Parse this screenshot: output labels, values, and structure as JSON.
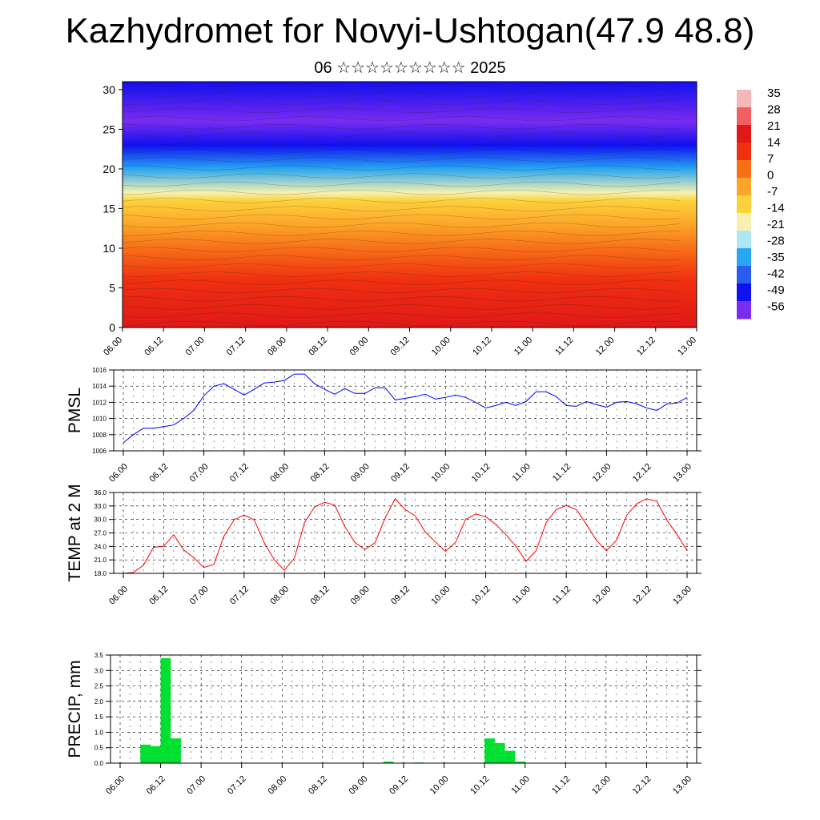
{
  "page": {
    "title": "Kazhydromet for Novyi-Ushtogan(47.9 48.8)",
    "subtitle": "06 ☆☆☆☆☆☆☆☆☆ 2025"
  },
  "chart_data": [
    {
      "type": "heatmap",
      "title": "",
      "xlabel": "",
      "ylabel": "",
      "x_ticks": [
        "06.00",
        "06.12",
        "07.00",
        "07.12",
        "08.00",
        "08.12",
        "09.00",
        "09.12",
        "10.00",
        "10.12",
        "11.00",
        "11.12",
        "12.00",
        "12.12",
        "13.00"
      ],
      "y_ticks": [
        0,
        5,
        10,
        15,
        20,
        25,
        30
      ],
      "ylim": [
        0,
        31
      ],
      "colorbar_labels": [
        "35",
        "28",
        "21",
        "14",
        "7",
        "0",
        "-7",
        "-14",
        "-21",
        "-28",
        "-35",
        "-42",
        "-49",
        "-56"
      ],
      "colorbar_values": [
        35,
        28,
        21,
        14,
        7,
        0,
        -7,
        -14,
        -21,
        -28,
        -35,
        -42,
        -49,
        -56
      ],
      "colors": [
        "#7a2cf0",
        "#1010f0",
        "#2a5cf0",
        "#29a6f0",
        "#aee6f6",
        "#f8f0b0",
        "#fcd23a",
        "#fba628",
        "#f77018",
        "#f03010",
        "#e01818",
        "#f06060",
        "#f4b8b8"
      ],
      "profile": [
        {
          "height": 0,
          "temp": 22
        },
        {
          "height": 6,
          "temp": 15
        },
        {
          "height": 10,
          "temp": 6
        },
        {
          "height": 13,
          "temp": -3
        },
        {
          "height": 16,
          "temp": -12
        },
        {
          "height": 17,
          "temp": -18
        },
        {
          "height": 20,
          "temp": -32
        },
        {
          "height": 23,
          "temp": -50
        },
        {
          "height": 26,
          "temp": -58
        },
        {
          "height": 31,
          "temp": -52
        }
      ]
    },
    {
      "type": "line",
      "ylabel": "PMSL",
      "x_ticks": [
        "06.00",
        "06.12",
        "07.00",
        "07.12",
        "08.00",
        "08.12",
        "09.00",
        "09.12",
        "10.00",
        "10.12",
        "11.00",
        "11.12",
        "12.00",
        "12.12",
        "13.00"
      ],
      "y_ticks": [
        "1006",
        "1008",
        "1010",
        "1012",
        "1014",
        "1016"
      ],
      "ylim": [
        1006,
        1016
      ],
      "color": "#0000ff",
      "series": [
        {
          "values": [
            1007.0,
            1008.0,
            1008.8,
            1008.8,
            1009.0,
            1009.2,
            1010.0,
            1011.0,
            1012.8,
            1014.0,
            1014.3,
            1013.6,
            1012.9,
            1013.6,
            1014.4,
            1014.5,
            1014.7,
            1015.5,
            1015.5,
            1014.3,
            1013.6,
            1013.0,
            1013.7,
            1013.1,
            1013.1,
            1013.8,
            1013.8,
            1012.3,
            1012.5,
            1012.7,
            1013.0,
            1012.4,
            1012.6,
            1012.9,
            1012.6,
            1012.0,
            1011.3,
            1011.6,
            1012.0,
            1011.6,
            1012.1,
            1013.3,
            1013.3,
            1012.7,
            1011.6,
            1011.5,
            1012.1,
            1011.7,
            1011.4,
            1012.0,
            1012.1,
            1011.8,
            1011.3,
            1011.0,
            1011.8,
            1011.9,
            1012.6
          ]
        }
      ]
    },
    {
      "type": "line",
      "ylabel": "TEMP at 2 M",
      "x_ticks": [
        "06.00",
        "06.12",
        "07.00",
        "07.12",
        "08.00",
        "08.12",
        "09.00",
        "09.12",
        "10.00",
        "10.12",
        "11.00",
        "11.12",
        "12.00",
        "12.12",
        "13.00"
      ],
      "y_ticks": [
        "18.0",
        "21.0",
        "24.0",
        "27.0",
        "30.0",
        "33.0",
        "36.0"
      ],
      "ylim": [
        18,
        36
      ],
      "color": "#ff0000",
      "series": [
        {
          "values": [
            18.0,
            18.2,
            19.8,
            23.8,
            24.0,
            26.6,
            23.2,
            21.5,
            19.3,
            20.0,
            26.3,
            29.9,
            31.0,
            29.9,
            24.8,
            21.0,
            18.7,
            21.4,
            29.3,
            32.8,
            33.8,
            33.2,
            28.4,
            24.9,
            23.3,
            24.8,
            30.3,
            34.6,
            32.2,
            30.8,
            27.2,
            25.0,
            22.9,
            24.9,
            30.0,
            31.2,
            30.6,
            28.9,
            26.6,
            24.0,
            20.7,
            23.0,
            29.3,
            32.2,
            33.1,
            32.2,
            28.9,
            25.3,
            23.0,
            25.4,
            30.9,
            33.5,
            34.6,
            34.0,
            29.8,
            26.7,
            23.0
          ]
        }
      ]
    },
    {
      "type": "bar",
      "ylabel": "PRECIP, mm",
      "x_ticks": [
        "06.00",
        "06.12",
        "07.00",
        "07.12",
        "08.00",
        "08.12",
        "09.00",
        "09.12",
        "10.00",
        "10.12",
        "11.00",
        "11.12",
        "12.00",
        "12.12",
        "13.00"
      ],
      "y_ticks": [
        "0.0",
        "0.5",
        "1.0",
        "1.5",
        "2.0",
        "2.5",
        "3.0",
        "3.5"
      ],
      "ylim": [
        0,
        3.5
      ],
      "color": "#00e030",
      "series": [
        {
          "values": [
            0,
            0,
            0.6,
            0.55,
            3.4,
            0.8,
            0,
            0,
            0,
            0,
            0,
            0,
            0,
            0,
            0,
            0,
            0,
            0,
            0,
            0,
            0,
            0,
            0,
            0,
            0,
            0,
            0.05,
            0,
            0,
            0.02,
            0,
            0,
            0,
            0,
            0,
            0,
            0.8,
            0.65,
            0.4,
            0.05,
            0,
            0,
            0,
            0,
            0,
            0,
            0,
            0,
            0,
            0,
            0,
            0,
            0,
            0,
            0,
            0
          ]
        }
      ]
    }
  ]
}
